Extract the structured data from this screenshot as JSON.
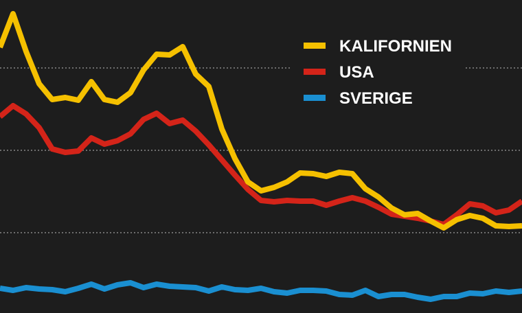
{
  "chart_data": {
    "type": "line",
    "title": "",
    "xlabel": "",
    "ylabel": "",
    "x": [
      0,
      1,
      2,
      3,
      4,
      5,
      6,
      7,
      8,
      9,
      10,
      11,
      12,
      13,
      14,
      15,
      16,
      17,
      18,
      19,
      20,
      21,
      22,
      23,
      24,
      25,
      26,
      27,
      28,
      29,
      30,
      31,
      32,
      33,
      34,
      35,
      36,
      37,
      38,
      39,
      40
    ],
    "ylim": [
      0,
      456
    ],
    "grid": true,
    "legend_position": "top-right",
    "series": [
      {
        "name": "KALIFORNIEN",
        "color": "#f5c000",
        "values": [
          387,
          436,
          381,
          334,
          311,
          314,
          310,
          337,
          311,
          307,
          321,
          354,
          377,
          376,
          388,
          348,
          330,
          268,
          225,
          191,
          178,
          183,
          191,
          204,
          203,
          199,
          205,
          203,
          181,
          169,
          153,
          143,
          145,
          134,
          124,
          136,
          142,
          138,
          127,
          126,
          127
        ]
      },
      {
        "name": "USA",
        "color": "#d42419",
        "values": [
          286,
          302,
          290,
          270,
          239,
          234,
          236,
          255,
          246,
          251,
          261,
          282,
          291,
          276,
          281,
          265,
          245,
          223,
          201,
          180,
          164,
          162,
          164,
          163,
          163,
          157,
          163,
          168,
          163,
          154,
          144,
          141,
          138,
          134,
          129,
          143,
          159,
          156,
          146,
          150,
          163
        ]
      },
      {
        "name": "SVERIGE",
        "color": "#1a8fd1",
        "values": [
          36,
          33,
          37,
          35,
          34,
          31,
          36,
          42,
          35,
          41,
          44,
          37,
          42,
          39,
          38,
          37,
          32,
          38,
          34,
          33,
          36,
          31,
          29,
          33,
          33,
          32,
          27,
          26,
          33,
          24,
          27,
          27,
          23,
          20,
          24,
          24,
          29,
          28,
          32,
          30,
          32
        ]
      }
    ]
  }
}
